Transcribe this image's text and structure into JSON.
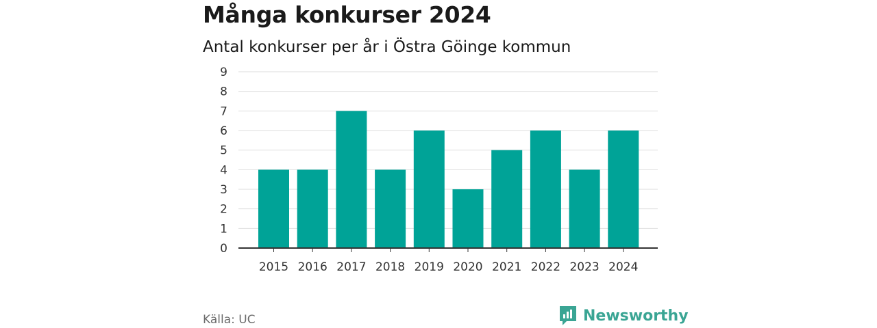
{
  "title": "Många konkurser 2024",
  "subtitle": "Antal konkurser per år i Östra Göinge kommun",
  "source": "Källa: UC",
  "brand": "Newsworthy",
  "colors": {
    "bar": "#00a397",
    "grid": "#dddddd",
    "axis": "#333333",
    "brand": "#3aa594"
  },
  "chart_data": {
    "type": "bar",
    "title": "Många konkurser 2024",
    "subtitle": "Antal konkurser per år i Östra Göinge kommun",
    "categories": [
      "2015",
      "2016",
      "2017",
      "2018",
      "2019",
      "2020",
      "2021",
      "2022",
      "2023",
      "2024"
    ],
    "values": [
      4,
      4,
      7,
      4,
      6,
      3,
      5,
      6,
      4,
      6
    ],
    "xlabel": "",
    "ylabel": "",
    "ylim": [
      0,
      9
    ],
    "yticks": [
      0,
      1,
      2,
      3,
      4,
      5,
      6,
      7,
      8,
      9
    ],
    "grid": true,
    "legend": "none"
  }
}
